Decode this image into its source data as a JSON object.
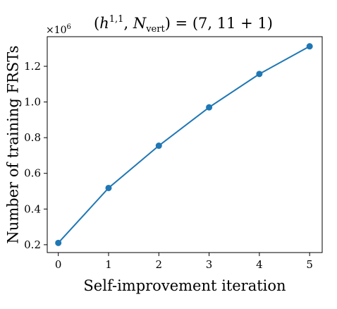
{
  "chart_data": {
    "type": "line",
    "title_parts": {
      "open": "(",
      "h": "h",
      "h_sup": "1,1",
      "sep": ", ",
      "n": "N",
      "n_sub": "vert",
      "rest": ") = (7, 11 + 1)"
    },
    "xlabel": "Self-improvement iteration",
    "ylabel": "Number of training FRSTs",
    "y_offset_text": {
      "prefix": "×10",
      "exp": "6"
    },
    "x": [
      0,
      1,
      2,
      3,
      4,
      5
    ],
    "series": [
      {
        "values": [
          0.21,
          0.518,
          0.755,
          0.97,
          1.157,
          1.312
        ],
        "color": "#1f77b4"
      }
    ],
    "xticks": [
      0,
      1,
      2,
      3,
      4,
      5
    ],
    "yticks": [
      0.2,
      0.4,
      0.6,
      0.8,
      1.0,
      1.2
    ],
    "ytick_labels": [
      "0.2",
      "0.4",
      "0.6",
      "0.8",
      "1.0",
      "1.2"
    ],
    "xlim": [
      -0.22,
      5.25
    ],
    "ylim": [
      0.156,
      1.366
    ],
    "grid": false,
    "legend": "none"
  }
}
